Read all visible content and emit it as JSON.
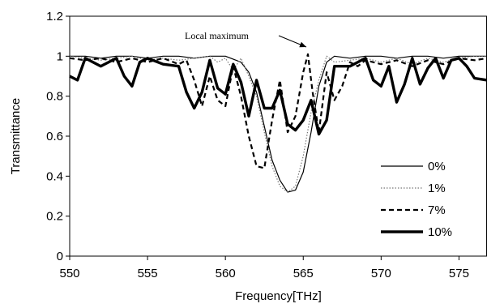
{
  "chart_data": {
    "type": "line",
    "xlabel": "Frequency[THz]",
    "ylabel": "Transmittance",
    "xlim": [
      550,
      576.8
    ],
    "ylim": [
      0,
      1.2
    ],
    "x_ticks": [
      550,
      555,
      560,
      565,
      570,
      575
    ],
    "y_ticks": [
      0,
      0.2,
      0.4,
      0.6,
      0.8,
      1,
      1.2
    ],
    "x_tick_labels": [
      "550",
      "555",
      "560",
      "565",
      "570",
      "575"
    ],
    "y_tick_labels": [
      "0",
      "0.2",
      "0.4",
      "0.6",
      "0.8",
      "1",
      "1.2"
    ],
    "grid": false,
    "legend_position": "right",
    "annotation": {
      "text": "Local maximum",
      "x": 565.1,
      "y": 1.0
    },
    "series": [
      {
        "name": "0%",
        "style": "solid-thin",
        "color": "#000000",
        "x": [
          550,
          551,
          552,
          553,
          554,
          555,
          556,
          557,
          558,
          559,
          560,
          561,
          561.5,
          562,
          562.5,
          563,
          563.5,
          564,
          564.5,
          565,
          565.5,
          566,
          566.5,
          567,
          568,
          569,
          570,
          571,
          572,
          573,
          574,
          575,
          576,
          576.8
        ],
        "y": [
          1.0,
          1.0,
          0.99,
          1.0,
          1.0,
          0.99,
          1.0,
          1.0,
          0.99,
          1.0,
          1.0,
          0.97,
          0.92,
          0.82,
          0.65,
          0.48,
          0.38,
          0.32,
          0.33,
          0.42,
          0.62,
          0.85,
          0.97,
          1.0,
          0.99,
          1.0,
          1.0,
          0.99,
          1.0,
          1.0,
          0.99,
          1.0,
          1.0,
          1.0
        ]
      },
      {
        "name": "1%",
        "style": "dotted",
        "color": "#777777",
        "x": [
          550,
          551,
          552,
          553,
          554,
          555,
          556,
          557,
          558,
          559,
          559.5,
          560,
          560.5,
          561,
          561.5,
          562,
          562.5,
          563,
          563.5,
          564,
          564.5,
          565,
          565.5,
          566,
          566.5,
          567,
          568,
          569,
          570,
          571,
          572,
          573,
          574,
          575,
          576,
          576.8
        ],
        "y": [
          1.0,
          0.99,
          0.98,
          0.99,
          1.0,
          0.98,
          0.99,
          0.98,
          0.99,
          1.0,
          0.97,
          0.99,
          0.93,
          0.99,
          0.9,
          0.8,
          0.62,
          0.45,
          0.35,
          0.32,
          0.35,
          0.5,
          0.72,
          0.88,
          1.0,
          0.97,
          0.98,
          0.99,
          0.97,
          0.99,
          0.96,
          0.99,
          0.97,
          0.99,
          1.0,
          1.0
        ]
      },
      {
        "name": "7%",
        "style": "dashed",
        "color": "#000000",
        "x": [
          550,
          551,
          552,
          553,
          554,
          555,
          556,
          557,
          557.5,
          558,
          558.5,
          559,
          559.5,
          560,
          560.5,
          561,
          561.5,
          562,
          562.5,
          563,
          563.5,
          564,
          564.5,
          565,
          565.3,
          565.6,
          566,
          566.5,
          567,
          567.5,
          568,
          568.5,
          569,
          570,
          571,
          572,
          573,
          574,
          575,
          576,
          576.8
        ],
        "y": [
          0.99,
          0.98,
          0.99,
          0.97,
          0.99,
          0.97,
          0.99,
          0.96,
          0.98,
          0.88,
          0.75,
          0.9,
          0.78,
          0.75,
          0.95,
          0.8,
          0.6,
          0.45,
          0.44,
          0.68,
          0.88,
          0.62,
          0.7,
          0.92,
          1.01,
          0.82,
          0.62,
          0.92,
          0.78,
          0.85,
          0.97,
          0.95,
          0.98,
          0.96,
          0.98,
          0.95,
          0.98,
          0.96,
          0.99,
          0.98,
          0.99
        ]
      },
      {
        "name": "10%",
        "style": "solid-thick",
        "color": "#000000",
        "x": [
          550,
          550.5,
          551,
          552,
          553,
          553.5,
          554,
          554.5,
          555,
          556,
          557,
          557.5,
          558,
          558.5,
          559,
          559.5,
          560,
          560.5,
          561,
          561.5,
          562,
          562.5,
          563,
          563.5,
          564,
          564.5,
          565,
          565.5,
          566,
          566.5,
          567,
          568,
          569,
          569.5,
          570,
          570.5,
          571,
          571.5,
          572,
          572.5,
          573,
          573.5,
          574,
          574.5,
          575,
          575.5,
          576,
          576.8
        ],
        "y": [
          0.9,
          0.88,
          0.99,
          0.95,
          0.99,
          0.9,
          0.85,
          0.97,
          0.99,
          0.96,
          0.95,
          0.82,
          0.74,
          0.82,
          0.98,
          0.84,
          0.81,
          0.96,
          0.87,
          0.7,
          0.88,
          0.74,
          0.74,
          0.83,
          0.66,
          0.63,
          0.68,
          0.78,
          0.61,
          0.68,
          0.95,
          0.95,
          0.99,
          0.88,
          0.85,
          0.95,
          0.77,
          0.86,
          0.99,
          0.86,
          0.94,
          0.99,
          0.89,
          0.98,
          0.99,
          0.95,
          0.89,
          0.88
        ]
      }
    ]
  }
}
